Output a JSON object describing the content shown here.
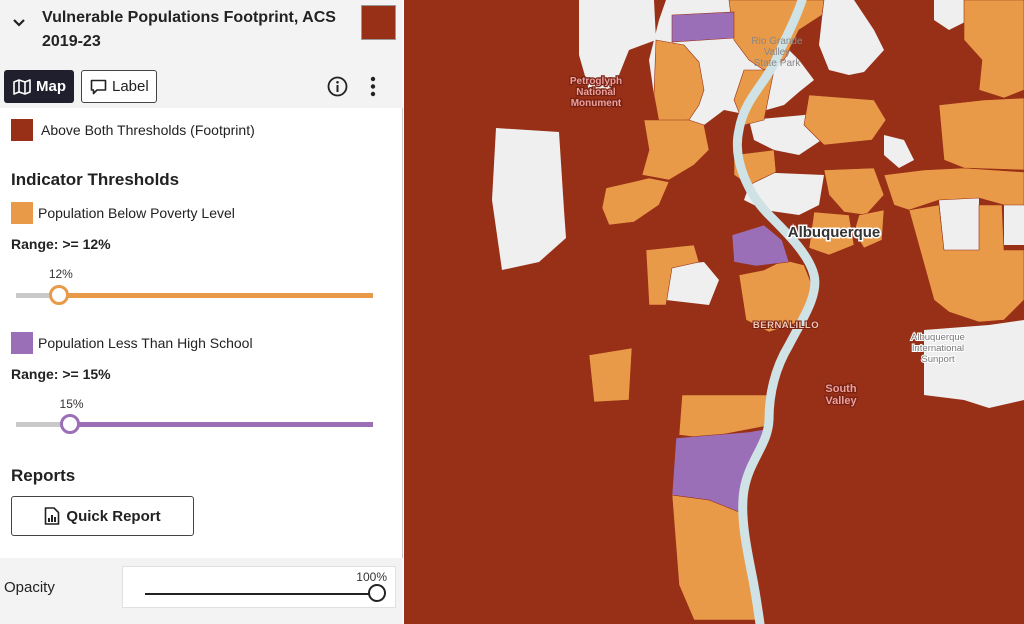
{
  "layer": {
    "title": "Vulnerable Populations Footprint, ACS 2019-23",
    "swatch_color": "#983018",
    "expand_icon": "chevron-down-icon"
  },
  "toolbar": {
    "map_label": "Map",
    "label_label": "Label",
    "map_icon": "map-icon",
    "label_icon": "comment-icon",
    "info_icon": "info-icon",
    "more_icon": "kebab-icon"
  },
  "legend": {
    "footprint_label": "Above Both Thresholds (Footprint)",
    "footprint_color": "#983018"
  },
  "thresholds": {
    "title": "Indicator Thresholds",
    "poverty": {
      "label": "Population Below Poverty Level",
      "color": "#e89a48",
      "range_label": "Range: >= 12%",
      "value_text": "12%",
      "value": 12
    },
    "education": {
      "label": "Population Less Than High School",
      "color": "#9b6fb8",
      "range_label": "Range: >= 15%",
      "value_text": "15%",
      "value": 15
    }
  },
  "reports": {
    "title": "Reports",
    "quick_report_label": "Quick Report",
    "quick_report_icon": "bar-chart-report-icon"
  },
  "opacity": {
    "label": "Opacity",
    "value_text": "100%",
    "value": 100
  },
  "map": {
    "colors": {
      "footprint": "#983018",
      "poverty": "#e89a48",
      "education": "#9b6fb8",
      "base": "#efefef",
      "river": "#cfe2e6"
    },
    "labels": {
      "petroglyph": "Petroglyph National Monument",
      "rio_grande": "Rio Grande Valley State Park",
      "albuquerque": "Albuquerque",
      "bernalillo": "BERNALILLO",
      "south_valley": "South Valley",
      "airport": "Albuquerque International Sunport"
    }
  }
}
